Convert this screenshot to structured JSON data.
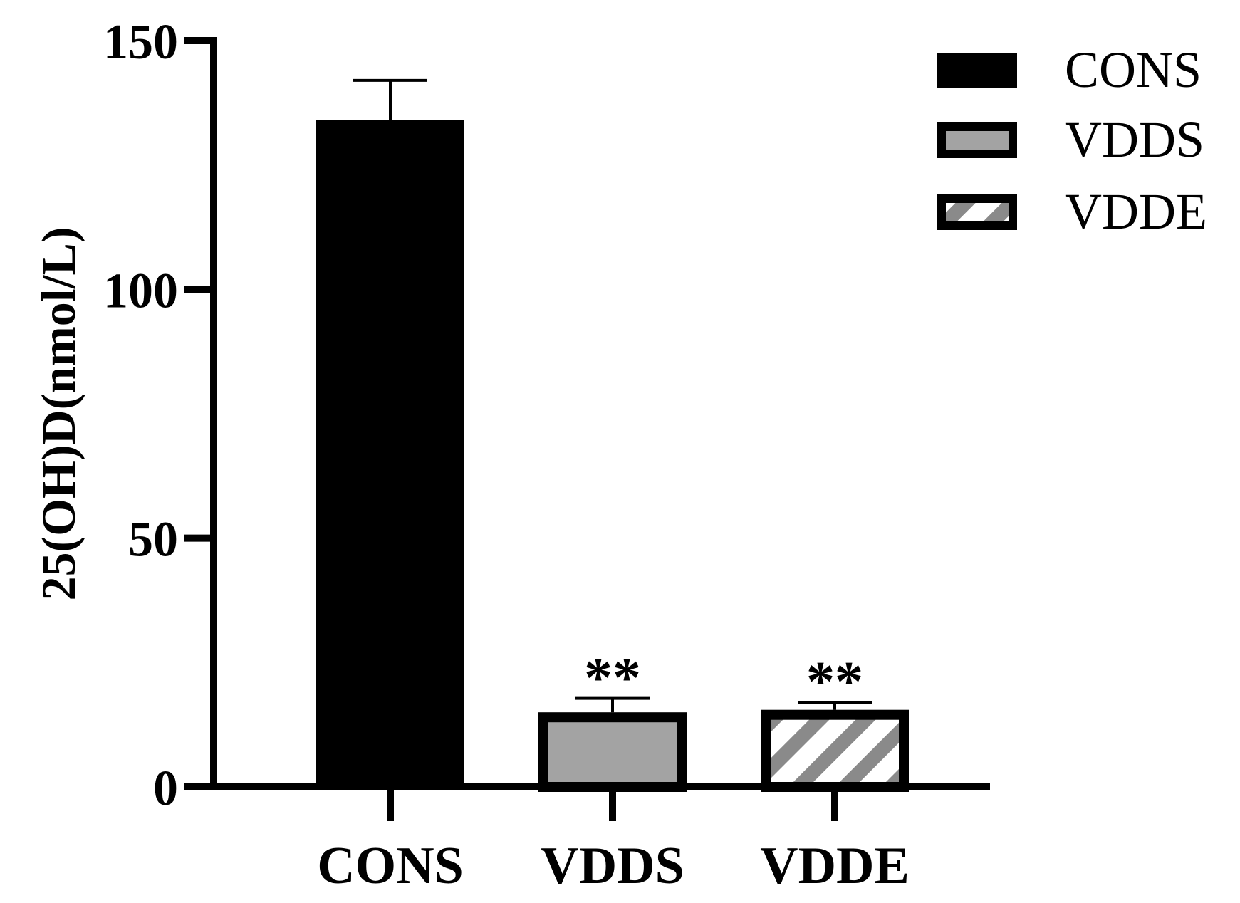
{
  "chart_data": {
    "type": "bar",
    "ylabel": "25(OH)D(nmol/L)",
    "xlabel": "",
    "ylim": [
      0,
      150
    ],
    "yticks": [
      0,
      50,
      100,
      150
    ],
    "categories": [
      "CONS",
      "VDDS",
      "VDDE"
    ],
    "series": [
      {
        "values": [
          134,
          15,
          15.5
        ],
        "errors": [
          8,
          2.8,
          1.5
        ],
        "fills": [
          "solid-black",
          "solid-gray",
          "hatched-gray"
        ],
        "annotations": [
          "",
          "**",
          "**"
        ]
      }
    ],
    "legend": {
      "position": "top-right",
      "entries": [
        "CONS",
        "VDDS",
        "VDDE"
      ]
    },
    "colors": {
      "black": "#000000",
      "gray": "#a3a3a3",
      "hatch": "#8a8a8a"
    }
  }
}
